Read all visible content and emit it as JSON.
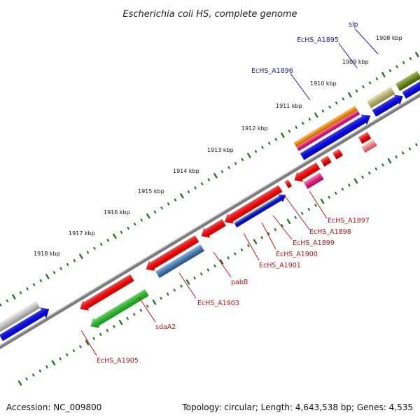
{
  "title": "Escherichia coli HS, complete genome",
  "footer": {
    "accession": "Accession: NC_009800",
    "summary": "Topology: circular; Length: 4,643,538 bp; Genes: 4,535"
  },
  "scale": {
    "unit": "kbp",
    "labels": [
      "1908 kbp",
      "1909 kbp",
      "1910 kbp",
      "1911 kbp",
      "1912 kbp",
      "1913 kbp",
      "1914 kbp",
      "1915 kbp",
      "1916 kbp",
      "1917 kbp",
      "1918 kbp"
    ]
  },
  "genes_outer": [
    {
      "label": "slp",
      "color": "#1a1aa8"
    },
    {
      "label": "EcHS_A1895",
      "color": "#1a1aa8"
    },
    {
      "label": "EcHS_A1896",
      "color": "#1a1aa8"
    }
  ],
  "genes_inner": [
    {
      "label": "EcHS_A1897",
      "color": "#c81010"
    },
    {
      "label": "EcHS_A1898",
      "color": "#c81010"
    },
    {
      "label": "EcHS_A1899",
      "color": "#c81010"
    },
    {
      "label": "EcHS_A1900",
      "color": "#c81010"
    },
    {
      "label": "EcHS_A1901",
      "color": "#c81010"
    },
    {
      "label": "pabB",
      "color": "#c81010"
    },
    {
      "label": "EcHS_A1903",
      "color": "#c81010"
    },
    {
      "label": "sdaA2",
      "color": "#c81010"
    },
    {
      "label": "EcHS_A1905",
      "color": "#c81010"
    }
  ],
  "colors": {
    "forward_cds": "#1010d0",
    "reverse_cds": "#e01010",
    "rna": "#4a7ab0",
    "gene_green": "#30b030",
    "gene_olive": "#6b8a20",
    "gene_khaki": "#b5b070",
    "gene_orange": "#f08c10",
    "gene_pink": "#e0207a",
    "backbone": "#7a7a7a",
    "ticks": "#1e7a1e"
  }
}
